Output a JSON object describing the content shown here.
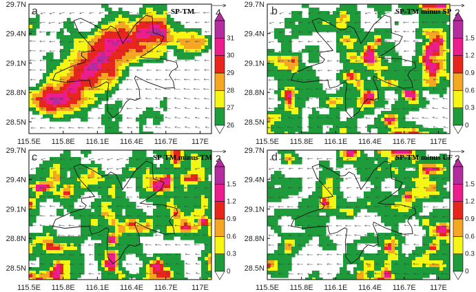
{
  "figure": {
    "panels": [
      {
        "letter": "a",
        "title": "SP-TM",
        "ref_vector": "4",
        "colorbar": {
          "boundaries": [
            "26",
            "27",
            "28",
            "29",
            "30",
            "31"
          ],
          "colors": [
            "#1e9b3a",
            "#f5f516",
            "#f5a623",
            "#e8261d",
            "#ec1d8c",
            "#b32d9e"
          ],
          "extend": "both"
        }
      },
      {
        "letter": "b",
        "title": "SP-TM minus SP",
        "ref_vector": "2",
        "colorbar": {
          "boundaries": [
            "0",
            "0.3",
            "0.6",
            "0.9",
            "1.2",
            "1.5"
          ],
          "colors": [
            "#1e9b3a",
            "#f5f516",
            "#f5a623",
            "#e8261d",
            "#ec1d8c",
            "#b32d9e"
          ],
          "extend": "both"
        }
      },
      {
        "letter": "c",
        "title": "SP-TM minus TM",
        "ref_vector": "2",
        "colorbar": {
          "boundaries": [
            "0",
            "0.3",
            "0.6",
            "0.9",
            "1.2",
            "1.5"
          ],
          "colors": [
            "#1e9b3a",
            "#f5f516",
            "#f5a623",
            "#e8261d",
            "#ec1d8c",
            "#b32d9e"
          ],
          "extend": "both"
        }
      },
      {
        "letter": "d",
        "title": "SP-TM minus UF",
        "ref_vector": "2",
        "colorbar": {
          "boundaries": [
            "0",
            "0.3",
            "0.6",
            "0.9",
            "1.2",
            "1.5"
          ],
          "colors": [
            "#1e9b3a",
            "#f5f516",
            "#f5a623",
            "#e8261d",
            "#ec1d8c",
            "#b32d9e"
          ],
          "extend": "both"
        }
      }
    ]
  },
  "chart_data": {
    "type": "heatmap",
    "x_ticks": [
      "115.5E",
      "115.8E",
      "116.1E",
      "116.4E",
      "116.7E",
      "117E"
    ],
    "y_ticks": [
      "29.7N",
      "29.4N",
      "29.1N",
      "28.8N",
      "28.5N"
    ],
    "xlim": [
      115.5,
      117.1
    ],
    "ylim": [
      28.38,
      29.7
    ],
    "x_values": [
      115.5,
      115.8,
      116.1,
      116.4,
      116.7,
      117.0
    ],
    "y_values": [
      29.7,
      29.4,
      29.1,
      28.8,
      28.5
    ],
    "panels": [
      {
        "title": "SP-TM",
        "levels": [
          26,
          27,
          28,
          29,
          30,
          31
        ]
      },
      {
        "title": "SP-TM minus SP",
        "levels": [
          0,
          0.3,
          0.6,
          0.9,
          1.2,
          1.5
        ]
      },
      {
        "title": "SP-TM minus TM",
        "levels": [
          0,
          0.3,
          0.6,
          0.9,
          1.2,
          1.5
        ]
      },
      {
        "title": "SP-TM minus UF",
        "levels": [
          0,
          0.3,
          0.6,
          0.9,
          1.2,
          1.5
        ]
      }
    ]
  }
}
